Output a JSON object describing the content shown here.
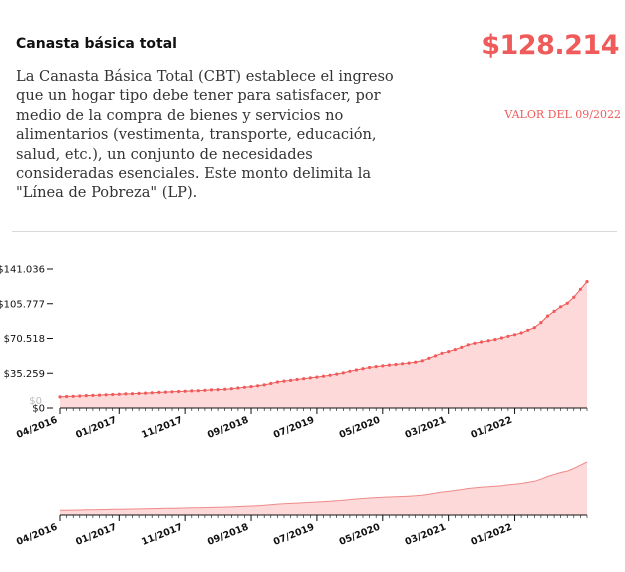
{
  "header": {
    "title": "Canasta básica total",
    "description": "La Canasta Básica Total (CBT) establece el ingreso que un hogar tipo debe tener para satisfacer, por medio de la compra de bienes y servicios no alimentarios (vestimenta, transporte, educación, salud, etc.), un conjunto de necesidades consideradas esenciales. Este monto delimita la \"Línea de Pobreza\" (LP).",
    "value": "$128.214",
    "value_date": "VALOR DEL 09/2022"
  },
  "colors": {
    "accent": "#ef5a5a",
    "area_fill": "#fdd9d9",
    "context_line": "#f08a8a"
  },
  "chart_data": [
    {
      "type": "area",
      "title": "",
      "xlabel": "",
      "ylabel": "",
      "y_ticks": [
        0,
        35259,
        70518,
        105777,
        141036
      ],
      "y_tick_labels": [
        "$0",
        "$35.259",
        "$70.518",
        "$105.777",
        "$141.036"
      ],
      "y_extra_label": "$0",
      "ylim": [
        0,
        141036
      ],
      "x_tick_labels": [
        "04/2016",
        "01/2017",
        "11/2017",
        "09/2018",
        "07/2019",
        "05/2020",
        "03/2021",
        "01/2022"
      ],
      "x_start": "2016-04",
      "x_end": "2022-09",
      "markers": true,
      "series": [
        {
          "values": [
            11300,
            11650,
            11900,
            12200,
            12600,
            12800,
            13100,
            13400,
            13700,
            14000,
            14300,
            14500,
            14800,
            15100,
            15400,
            15800,
            16100,
            16400,
            16700,
            17000,
            17300,
            17600,
            18000,
            18400,
            18700,
            19100,
            19600,
            20300,
            21000,
            21700,
            22500,
            23400,
            24900,
            26400,
            27300,
            28000,
            28900,
            29700,
            30500,
            31400,
            32300,
            33300,
            34400,
            35600,
            37200,
            38600,
            39900,
            41100,
            42000,
            42700,
            43500,
            44100,
            44800,
            45600,
            46500,
            47900,
            50400,
            52900,
            55500,
            57200,
            59300,
            61500,
            64100,
            65600,
            67000,
            68300,
            69400,
            71000,
            72800,
            74300,
            76100,
            78800,
            81500,
            86700,
            93200,
            98000,
            102700,
            106200,
            112400,
            120400,
            128214
          ]
        }
      ]
    },
    {
      "type": "area",
      "title": "",
      "x_tick_labels": [
        "04/2016",
        "01/2017",
        "11/2017",
        "09/2018",
        "07/2019",
        "05/2020",
        "03/2021",
        "01/2022"
      ],
      "note": "range selector overview of the same series"
    }
  ]
}
